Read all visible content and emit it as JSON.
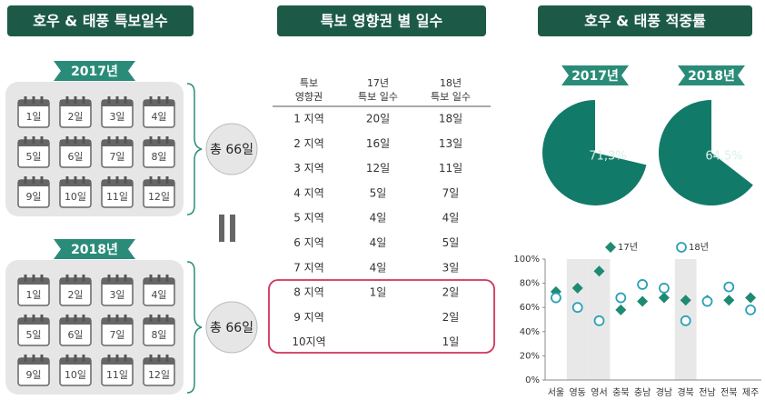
{
  "panels": [
    {
      "title": "호우 & 태풍 특보일수"
    },
    {
      "title": "특보 영향권 별 일수"
    },
    {
      "title": "호우 & 태풍 적중률"
    }
  ],
  "calendars": [
    {
      "year": "2017년",
      "days": [
        "1일",
        "2일",
        "3일",
        "4일",
        "5일",
        "6일",
        "7일",
        "8일",
        "9일",
        "10일",
        "11일",
        "12일"
      ],
      "total": "총 66일"
    },
    {
      "year": "2018년",
      "days": [
        "1일",
        "2일",
        "3일",
        "4일",
        "5일",
        "6일",
        "7일",
        "8일",
        "9일",
        "10일",
        "11일",
        "12일"
      ],
      "total": "총 66일"
    }
  ],
  "table": {
    "header": [
      [
        "특보",
        "영향권"
      ],
      [
        "17년",
        "특보 일수"
      ],
      [
        "18년",
        "특보 일수"
      ]
    ],
    "rows": [
      [
        "1 지역",
        "20일",
        "18일"
      ],
      [
        "2 지역",
        "16일",
        "13일"
      ],
      [
        "3 지역",
        "12일",
        "11일"
      ],
      [
        "4 지역",
        "5일",
        "7일"
      ],
      [
        "5 지역",
        "4일",
        "4일"
      ],
      [
        "6 지역",
        "4일",
        "5일"
      ],
      [
        "7 지역",
        "4일",
        "3일"
      ],
      [
        "8 지역",
        "1일",
        "2일"
      ],
      [
        "9 지역",
        null,
        "2일"
      ],
      [
        "10지역",
        null,
        "1일"
      ]
    ]
  },
  "chart_data": [
    {
      "type": "pie",
      "title": "2017년",
      "values": [
        71.3
      ],
      "value_labels": [
        "71,3%"
      ],
      "color": "#127a68"
    },
    {
      "type": "pie",
      "title": "2018년",
      "values": [
        64.5
      ],
      "value_labels": [
        "64,5%"
      ],
      "color": "#127a68"
    },
    {
      "type": "scatter",
      "categories": [
        "서울",
        "영동",
        "영서",
        "충북",
        "충남",
        "경남",
        "경북",
        "전남",
        "전북",
        "제주"
      ],
      "series": [
        {
          "name": "17년",
          "color": "#1e8a72",
          "marker": "diamond",
          "values": [
            73,
            76,
            90,
            58,
            65,
            68,
            66,
            66,
            66,
            68
          ]
        },
        {
          "name": "18년",
          "color": "#2aa0b8",
          "marker": "circle",
          "values": [
            68,
            60,
            49,
            68,
            79,
            76,
            49,
            65,
            77,
            58
          ]
        }
      ],
      "ylim": [
        0,
        100
      ],
      "yticks": [
        {
          "value": 0,
          "label": "0%"
        },
        {
          "value": 20,
          "label": "20%"
        },
        {
          "value": 40,
          "label": "40%"
        },
        {
          "value": 60,
          "label": "60%"
        },
        {
          "value": 80,
          "label": "80%"
        },
        {
          "value": 100,
          "label": "100%"
        }
      ],
      "shaded": [
        1,
        2,
        6
      ]
    }
  ]
}
